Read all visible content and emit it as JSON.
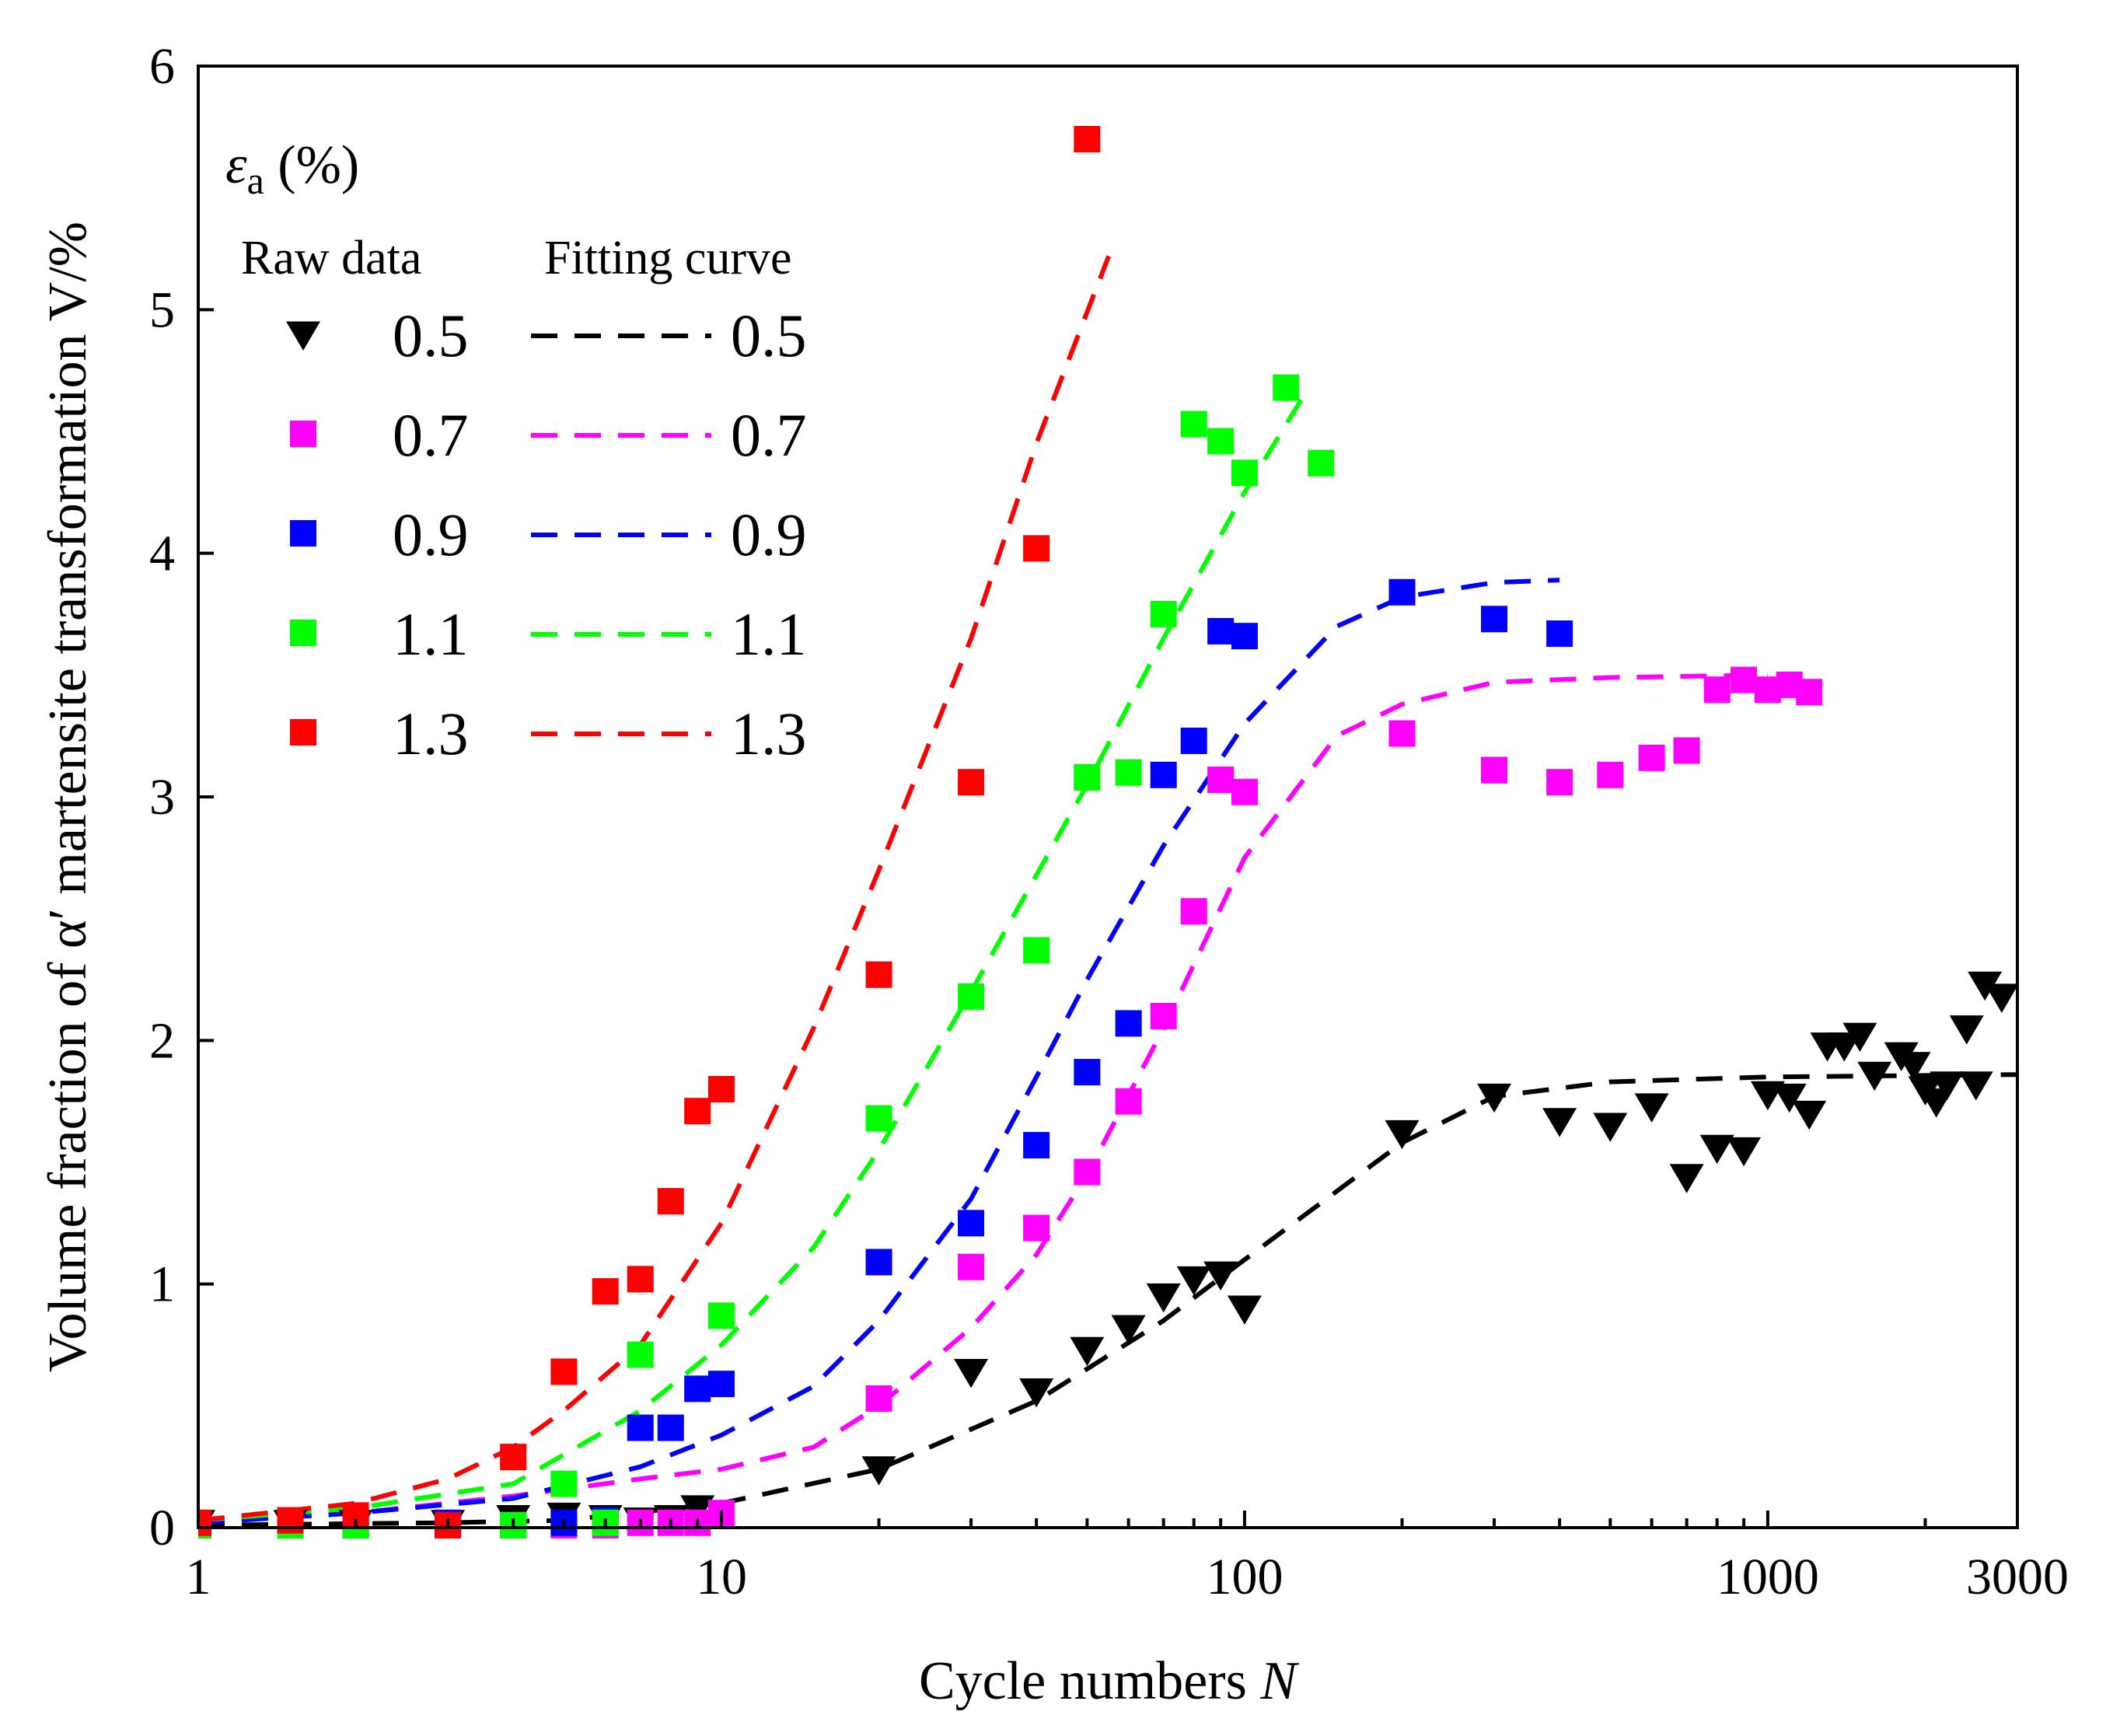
{
  "chart_data": {
    "type": "scatter",
    "xscale": "log",
    "xlim": [
      1,
      3000
    ],
    "ylim": [
      0,
      6
    ],
    "xticks": [
      1,
      10,
      100,
      1000,
      3000
    ],
    "xtick_labels": [
      "1",
      "10",
      "100",
      "1000",
      "3000"
    ],
    "yticks": [
      0,
      1,
      2,
      3,
      4,
      5,
      6
    ],
    "ytick_labels": [
      "0",
      "1",
      "2",
      "3",
      "4",
      "5",
      "6"
    ],
    "xlabel": "Cycle numbers ",
    "xlabel_var": "N",
    "ylabel": "Volume fraction of α′ martensite transformation V/%",
    "legend": {
      "title_symbol": "ε",
      "title_sub": "a",
      "title_rest": " (%)",
      "raw_header": "Raw data",
      "fit_header": "Fitting curve",
      "placement": "top-left"
    },
    "series": [
      {
        "name": "0.5",
        "color": "#000000",
        "marker": "triangle-down",
        "raw": [
          [
            1,
            0.02
          ],
          [
            1.5,
            0.02
          ],
          [
            2,
            0.02
          ],
          [
            3,
            0.02
          ],
          [
            4,
            0.04
          ],
          [
            5,
            0.05
          ],
          [
            6,
            0.04
          ],
          [
            7,
            0.03
          ],
          [
            8,
            0.04
          ],
          [
            9,
            0.08
          ],
          [
            20,
            0.24
          ],
          [
            30,
            0.64
          ],
          [
            40,
            0.56
          ],
          [
            50,
            0.73
          ],
          [
            60,
            0.82
          ],
          [
            70,
            0.95
          ],
          [
            80,
            1.02
          ],
          [
            90,
            1.04
          ],
          [
            100,
            0.9
          ],
          [
            200,
            1.62
          ],
          [
            300,
            1.77
          ],
          [
            400,
            1.67
          ],
          [
            500,
            1.65
          ],
          [
            600,
            1.73
          ],
          [
            700,
            1.44
          ],
          [
            800,
            1.56
          ],
          [
            900,
            1.55
          ],
          [
            1000,
            1.78
          ],
          [
            1100,
            1.77
          ],
          [
            1200,
            1.7
          ],
          [
            1300,
            1.98
          ],
          [
            1400,
            1.98
          ],
          [
            1500,
            2.02
          ],
          [
            1600,
            1.86
          ],
          [
            1800,
            1.94
          ],
          [
            1900,
            1.9
          ],
          [
            2000,
            1.8
          ],
          [
            2100,
            1.75
          ],
          [
            2200,
            1.82
          ],
          [
            2400,
            2.05
          ],
          [
            2500,
            1.82
          ],
          [
            2600,
            2.23
          ],
          [
            2800,
            2.18
          ]
        ],
        "fit": [
          [
            1,
            0.01
          ],
          [
            3,
            0.02
          ],
          [
            5,
            0.03
          ],
          [
            10,
            0.1
          ],
          [
            20,
            0.24
          ],
          [
            40,
            0.52
          ],
          [
            70,
            0.85
          ],
          [
            100,
            1.1
          ],
          [
            200,
            1.58
          ],
          [
            300,
            1.77
          ],
          [
            500,
            1.83
          ],
          [
            1000,
            1.85
          ],
          [
            3000,
            1.86
          ]
        ]
      },
      {
        "name": "0.7",
        "color": "#ff00ff",
        "marker": "square",
        "raw": [
          [
            1,
            0.01
          ],
          [
            1.5,
            0.01
          ],
          [
            2,
            0.01
          ],
          [
            3,
            0.01
          ],
          [
            4,
            0.01
          ],
          [
            5,
            0.01
          ],
          [
            6,
            0.01
          ],
          [
            7,
            0.02
          ],
          [
            8,
            0.02
          ],
          [
            9,
            0.02
          ],
          [
            10,
            0.06
          ],
          [
            20,
            0.53
          ],
          [
            30,
            1.07
          ],
          [
            40,
            1.23
          ],
          [
            50,
            1.46
          ],
          [
            60,
            1.75
          ],
          [
            70,
            2.1
          ],
          [
            80,
            2.53
          ],
          [
            90,
            3.07
          ],
          [
            100,
            3.02
          ],
          [
            200,
            3.26
          ],
          [
            300,
            3.11
          ],
          [
            400,
            3.06
          ],
          [
            500,
            3.09
          ],
          [
            600,
            3.16
          ],
          [
            700,
            3.19
          ],
          [
            800,
            3.44
          ],
          [
            900,
            3.48
          ],
          [
            1000,
            3.44
          ],
          [
            1100,
            3.46
          ],
          [
            1200,
            3.43
          ]
        ],
        "fit": [
          [
            1,
            0.02
          ],
          [
            2,
            0.06
          ],
          [
            4,
            0.13
          ],
          [
            7,
            0.2
          ],
          [
            10,
            0.24
          ],
          [
            15,
            0.33
          ],
          [
            20,
            0.5
          ],
          [
            30,
            0.82
          ],
          [
            40,
            1.12
          ],
          [
            50,
            1.45
          ],
          [
            70,
            2.05
          ],
          [
            100,
            2.75
          ],
          [
            150,
            3.25
          ],
          [
            200,
            3.38
          ],
          [
            300,
            3.47
          ],
          [
            500,
            3.49
          ],
          [
            1000,
            3.5
          ]
        ]
      },
      {
        "name": "0.9",
        "color": "#0000ff",
        "marker": "square",
        "raw": [
          [
            1,
            0.01
          ],
          [
            1.5,
            0.01
          ],
          [
            2,
            0.01
          ],
          [
            3,
            0.02
          ],
          [
            5,
            0.02
          ],
          [
            6,
            0.03
          ],
          [
            7,
            0.41
          ],
          [
            8,
            0.41
          ],
          [
            9,
            0.57
          ],
          [
            10,
            0.59
          ],
          [
            20,
            1.09
          ],
          [
            30,
            1.25
          ],
          [
            40,
            1.57
          ],
          [
            50,
            1.87
          ],
          [
            60,
            2.07
          ],
          [
            70,
            3.09
          ],
          [
            80,
            3.23
          ],
          [
            90,
            3.68
          ],
          [
            100,
            3.66
          ],
          [
            200,
            3.84
          ],
          [
            300,
            3.73
          ],
          [
            400,
            3.67
          ]
        ],
        "fit": [
          [
            1,
            0.02
          ],
          [
            2,
            0.06
          ],
          [
            4,
            0.12
          ],
          [
            7,
            0.25
          ],
          [
            10,
            0.38
          ],
          [
            15,
            0.58
          ],
          [
            20,
            0.85
          ],
          [
            30,
            1.35
          ],
          [
            40,
            1.85
          ],
          [
            50,
            2.25
          ],
          [
            70,
            2.8
          ],
          [
            100,
            3.3
          ],
          [
            150,
            3.7
          ],
          [
            200,
            3.82
          ],
          [
            300,
            3.88
          ],
          [
            400,
            3.89
          ]
        ]
      },
      {
        "name": "1.1",
        "color": "#00ff00",
        "marker": "square",
        "raw": [
          [
            1,
            0.01
          ],
          [
            1.5,
            0.01
          ],
          [
            2,
            0.01
          ],
          [
            4,
            0.01
          ],
          [
            5,
            0.18
          ],
          [
            6,
            0.02
          ],
          [
            7,
            0.71
          ],
          [
            10,
            0.87
          ],
          [
            20,
            1.68
          ],
          [
            30,
            2.18
          ],
          [
            40,
            2.37
          ],
          [
            50,
            3.08
          ],
          [
            60,
            3.1
          ],
          [
            70,
            3.75
          ],
          [
            80,
            4.53
          ],
          [
            90,
            4.46
          ],
          [
            100,
            4.33
          ],
          [
            120,
            4.68
          ],
          [
            140,
            4.37
          ]
        ],
        "fit": [
          [
            1,
            0.03
          ],
          [
            2,
            0.08
          ],
          [
            4,
            0.18
          ],
          [
            7,
            0.48
          ],
          [
            10,
            0.75
          ],
          [
            15,
            1.15
          ],
          [
            20,
            1.55
          ],
          [
            30,
            2.2
          ],
          [
            50,
            3.05
          ],
          [
            70,
            3.65
          ],
          [
            100,
            4.25
          ],
          [
            130,
            4.65
          ]
        ]
      },
      {
        "name": "1.3",
        "color": "#ff0000",
        "marker": "square",
        "raw": [
          [
            1,
            0.02
          ],
          [
            1.5,
            0.03
          ],
          [
            2,
            0.05
          ],
          [
            3,
            0.01
          ],
          [
            4,
            0.29
          ],
          [
            5,
            0.64
          ],
          [
            6,
            0.97
          ],
          [
            7,
            1.02
          ],
          [
            8,
            1.34
          ],
          [
            9,
            1.71
          ],
          [
            10,
            1.8
          ],
          [
            20,
            2.27
          ],
          [
            30,
            3.06
          ],
          [
            40,
            4.02
          ],
          [
            50,
            5.7
          ]
        ],
        "fit": [
          [
            1,
            0.03
          ],
          [
            2,
            0.1
          ],
          [
            3,
            0.2
          ],
          [
            4,
            0.33
          ],
          [
            5,
            0.48
          ],
          [
            7,
            0.75
          ],
          [
            10,
            1.25
          ],
          [
            15,
            2.05
          ],
          [
            20,
            2.7
          ],
          [
            30,
            3.65
          ],
          [
            40,
            4.45
          ],
          [
            55,
            5.22
          ]
        ]
      }
    ]
  }
}
